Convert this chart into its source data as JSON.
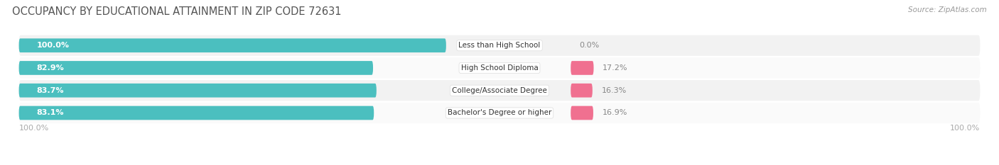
{
  "title": "OCCUPANCY BY EDUCATIONAL ATTAINMENT IN ZIP CODE 72631",
  "source": "Source: ZipAtlas.com",
  "categories": [
    "Less than High School",
    "High School Diploma",
    "College/Associate Degree",
    "Bachelor's Degree or higher"
  ],
  "owner_values": [
    100.0,
    82.9,
    83.7,
    83.1
  ],
  "renter_values": [
    0.0,
    17.2,
    16.3,
    16.9
  ],
  "owner_color": "#4bbfbf",
  "renter_color": "#f07090",
  "owner_label_color": "#ffffff",
  "renter_label_color": "#888888",
  "row_bg_odd": "#f2f2f2",
  "row_bg_even": "#fafafa",
  "title_color": "#555555",
  "source_color": "#999999",
  "axis_tick_color": "#aaaaaa",
  "title_fontsize": 10.5,
  "source_fontsize": 7.5,
  "value_fontsize": 8,
  "cat_fontsize": 7.5,
  "legend_fontsize": 8,
  "axis_label_fontsize": 8,
  "background_color": "#ffffff",
  "x_left_label": "100.0%",
  "x_right_label": "100.0%"
}
